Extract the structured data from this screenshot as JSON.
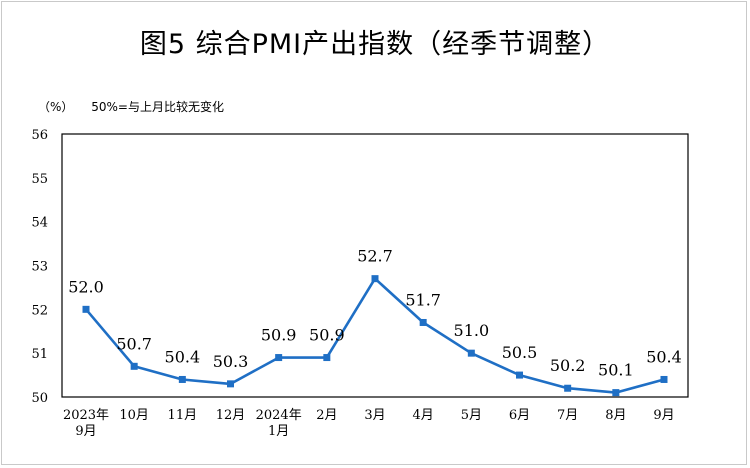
{
  "title": "图5  综合PMI产出指数（经季节调整）",
  "unit_note": "（%）",
  "baseline_note": "50%=与上月比较无变化",
  "colors": {
    "line": "#1f6fc5",
    "marker": "#1f6fc5",
    "axis": "#000000"
  },
  "chart_data": {
    "type": "line",
    "title": "图5  综合PMI产出指数（经季节调整）",
    "xlabel": "",
    "ylabel": "（%）",
    "ylim": [
      50,
      56
    ],
    "yticks": [
      50,
      51,
      52,
      53,
      54,
      55,
      56
    ],
    "grid": false,
    "categories": [
      [
        "2023年",
        "9月"
      ],
      [
        "10月"
      ],
      [
        "11月"
      ],
      [
        "12月"
      ],
      [
        "2024年",
        "1月"
      ],
      [
        "2月"
      ],
      [
        "3月"
      ],
      [
        "4月"
      ],
      [
        "5月"
      ],
      [
        "6月"
      ],
      [
        "7月"
      ],
      [
        "8月"
      ],
      [
        "9月"
      ]
    ],
    "series": [
      {
        "values": [
          52.0,
          50.7,
          50.4,
          50.3,
          50.9,
          50.9,
          52.7,
          51.7,
          51.0,
          50.5,
          50.2,
          50.1,
          50.4
        ],
        "labels": [
          "52.0",
          "50.7",
          "50.4",
          "50.3",
          "50.9",
          "50.9",
          "52.7",
          "51.7",
          "51.0",
          "50.5",
          "50.2",
          "50.1",
          "50.4"
        ]
      }
    ]
  }
}
